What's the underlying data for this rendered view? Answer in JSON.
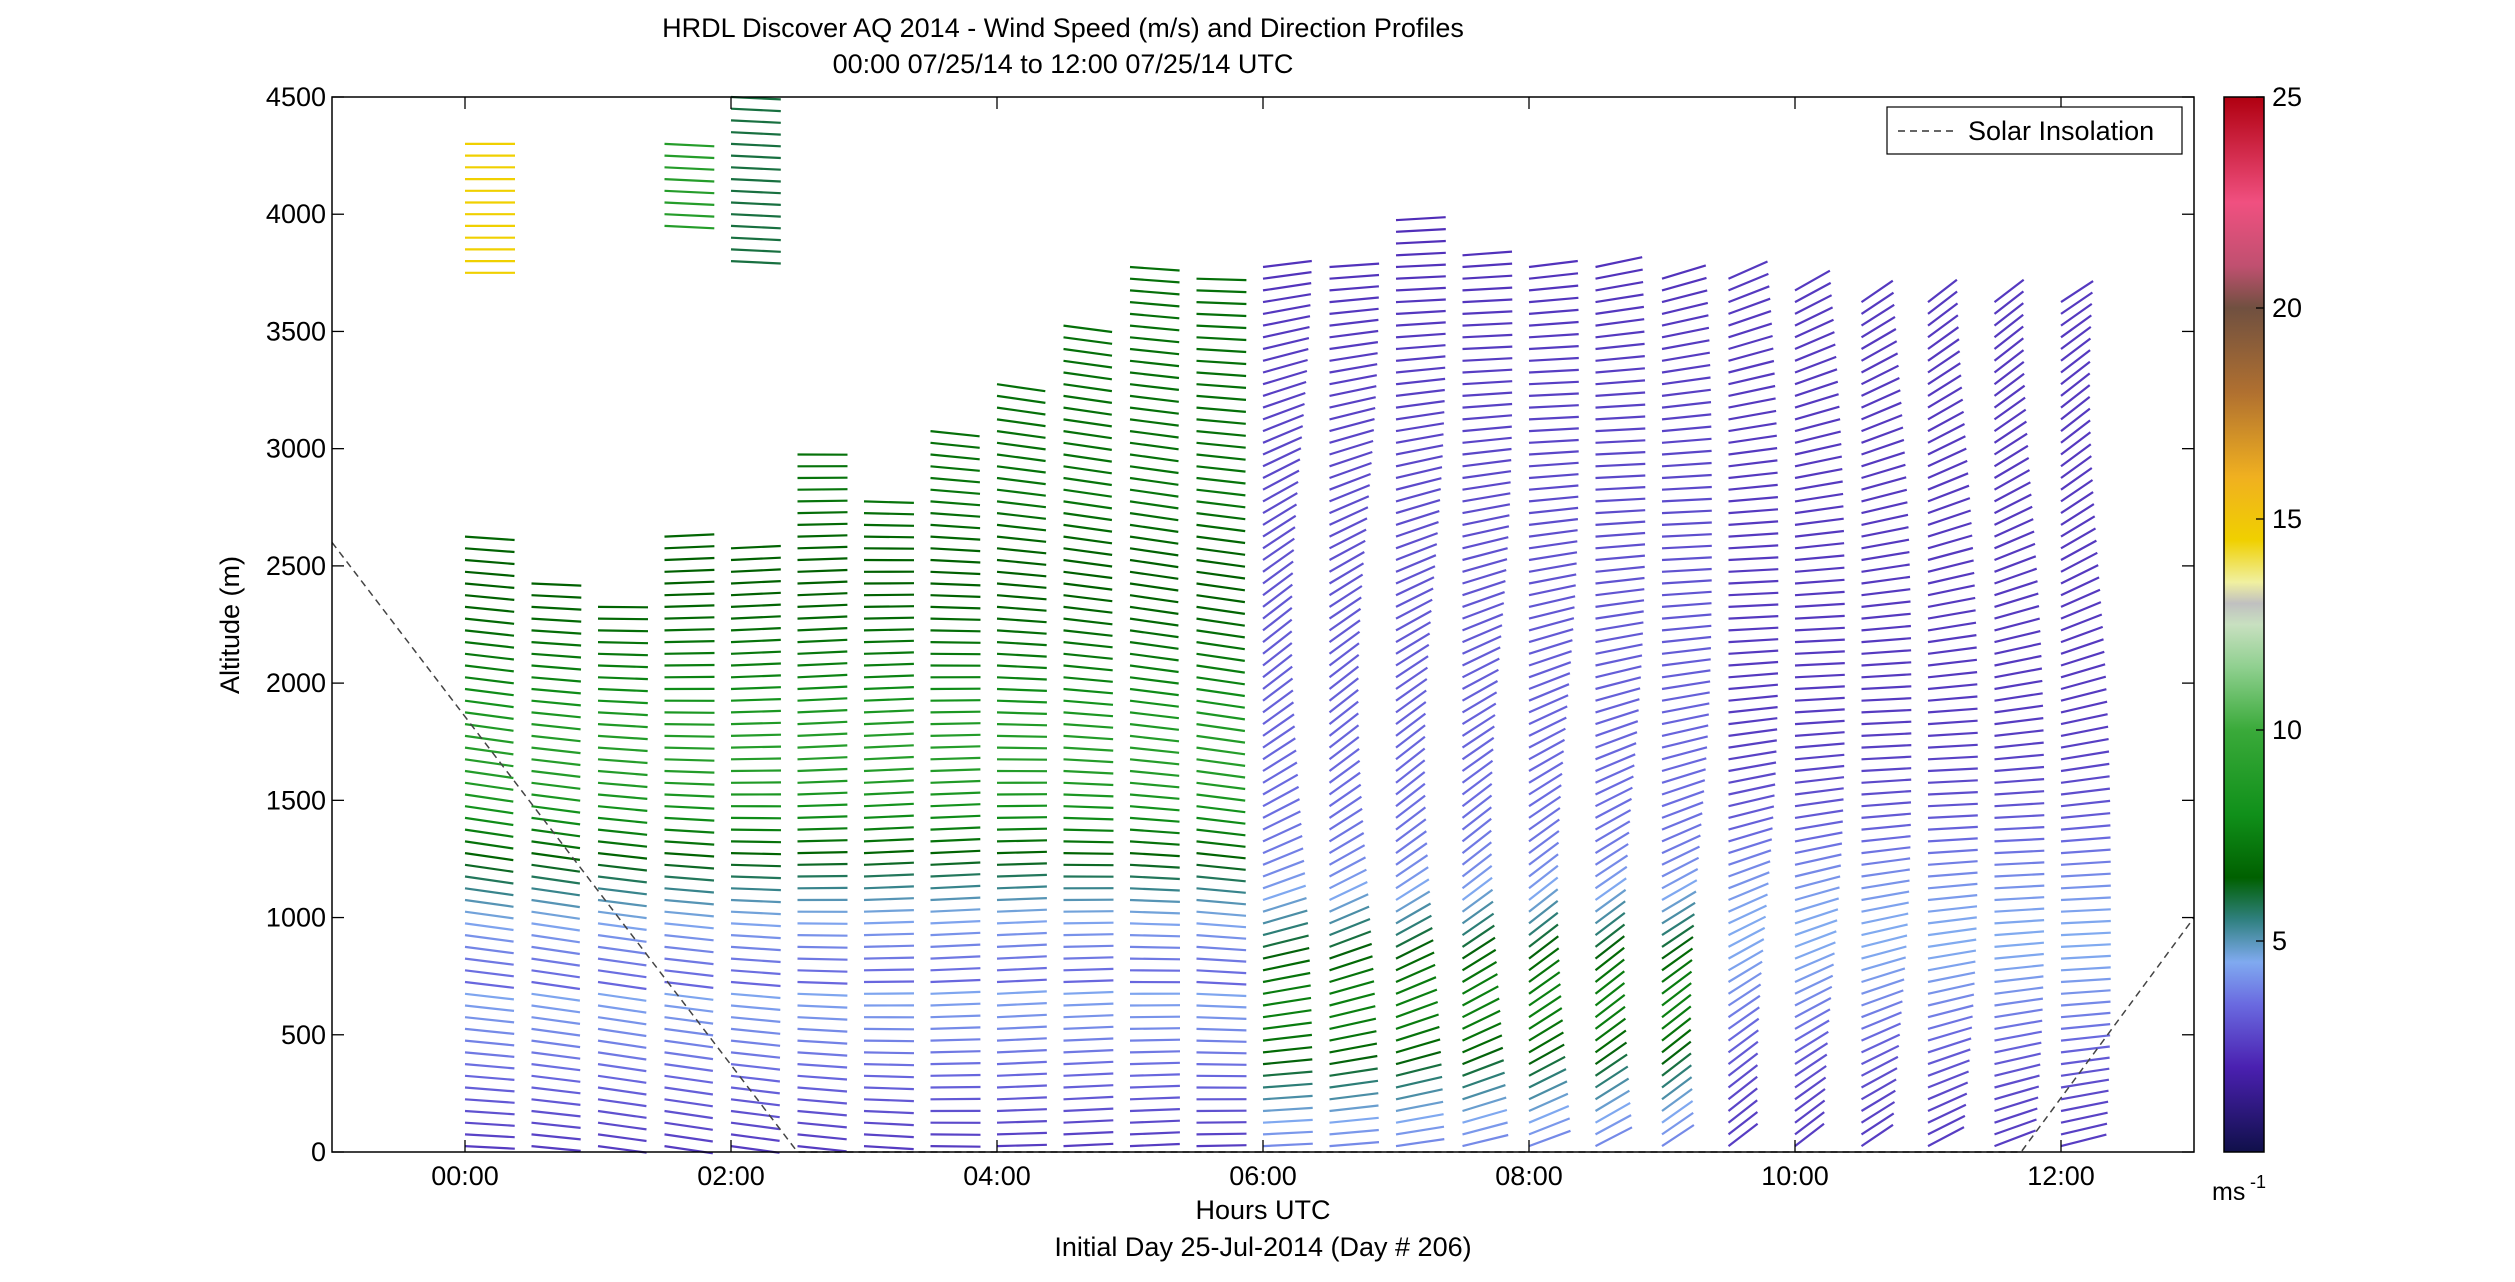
{
  "chart_data": {
    "type": "wind-barb-profile",
    "title": "HRDL Discover AQ 2014 - Wind Speed (m/s) and Direction Profiles",
    "subtitle": "00:00 07/25/14 to 12:00 07/25/14  UTC",
    "xlabel": "Hours UTC",
    "xlabel2": "Initial Day 25-Jul-2014 (Day # 206)",
    "ylabel": "Altitude (m)",
    "x_range_hours": [
      -1.0,
      13.0
    ],
    "ylim": [
      0,
      4500
    ],
    "x_ticks": [
      {
        "value": 0,
        "label": "00:00"
      },
      {
        "value": 2,
        "label": "02:00"
      },
      {
        "value": 4,
        "label": "04:00"
      },
      {
        "value": 6,
        "label": "06:00"
      },
      {
        "value": 8,
        "label": "08:00"
      },
      {
        "value": 10,
        "label": "10:00"
      },
      {
        "value": 12,
        "label": "12:00"
      }
    ],
    "y_ticks": [
      {
        "value": 0,
        "label": "0"
      },
      {
        "value": 500,
        "label": "500"
      },
      {
        "value": 1000,
        "label": "1000"
      },
      {
        "value": 1500,
        "label": "1500"
      },
      {
        "value": 2000,
        "label": "2000"
      },
      {
        "value": 2500,
        "label": "2500"
      },
      {
        "value": 3000,
        "label": "3000"
      },
      {
        "value": 3500,
        "label": "3500"
      },
      {
        "value": 4000,
        "label": "4000"
      },
      {
        "value": 4500,
        "label": "4500"
      }
    ],
    "legend": {
      "label": "Solar Insolation",
      "position": "top-right"
    },
    "colorbar": {
      "min": 0,
      "max": 25,
      "ticks": [
        {
          "value": 5,
          "label": "5"
        },
        {
          "value": 10,
          "label": "10"
        },
        {
          "value": 15,
          "label": "15"
        },
        {
          "value": 20,
          "label": "20"
        },
        {
          "value": 25,
          "label": "25"
        }
      ],
      "unit": "ms",
      "unit_exp": "-1",
      "stops": [
        {
          "value": 0,
          "color": "#10104a"
        },
        {
          "value": 2,
          "color": "#4a20b0"
        },
        {
          "value": 3.5,
          "color": "#6a6ae0"
        },
        {
          "value": 4.5,
          "color": "#80aaf0"
        },
        {
          "value": 5.5,
          "color": "#308080"
        },
        {
          "value": 6.5,
          "color": "#006000"
        },
        {
          "value": 8,
          "color": "#10901a"
        },
        {
          "value": 10,
          "color": "#3aaa3a"
        },
        {
          "value": 11.5,
          "color": "#90d090"
        },
        {
          "value": 12.5,
          "color": "#c8e0c0"
        },
        {
          "value": 13,
          "color": "#c0c0c0"
        },
        {
          "value": 13.5,
          "color": "#f0f0a0"
        },
        {
          "value": 14.5,
          "color": "#f0d000"
        },
        {
          "value": 16,
          "color": "#f0b020"
        },
        {
          "value": 18,
          "color": "#b07030"
        },
        {
          "value": 20,
          "color": "#705040"
        },
        {
          "value": 21,
          "color": "#c05070"
        },
        {
          "value": 22.5,
          "color": "#f05080"
        },
        {
          "value": 25,
          "color": "#b00010"
        }
      ]
    },
    "profiles_hours": [
      0.0,
      0.5,
      1.0,
      1.5,
      2.0,
      2.5,
      3.0,
      3.5,
      4.0,
      4.5,
      5.0,
      5.5,
      6.0,
      6.5,
      7.0,
      7.5,
      8.0,
      8.5,
      9.0,
      9.5,
      10.0,
      10.5,
      11.0,
      11.5,
      12.0
    ],
    "profile_top_m": [
      2650,
      2450,
      2350,
      2650,
      2600,
      3000,
      2800,
      3100,
      3300,
      3550,
      3800,
      3750,
      3800,
      3800,
      4000,
      3850,
      3800,
      3800,
      3750,
      3750,
      3700,
      3650,
      3650,
      3650,
      3650
    ],
    "profile_bottom_m": [
      0,
      0,
      0,
      0,
      0,
      0,
      0,
      0,
      0,
      0,
      0,
      0,
      0,
      0,
      0,
      0,
      0,
      0,
      0,
      0,
      0,
      0,
      0,
      0,
      0
    ],
    "upper_fragments": [
      {
        "hour": 0.0,
        "bottom_m": 3750,
        "top_m": 4300,
        "speed": 14.5,
        "dir_deg": 270
      },
      {
        "hour": 1.5,
        "bottom_m": 3950,
        "top_m": 4300,
        "speed": 9,
        "dir_deg": 265
      },
      {
        "hour": 2.0,
        "bottom_m": 3800,
        "top_m": 4500,
        "speed": 6,
        "dir_deg": 265
      }
    ],
    "solar_insolation": [
      {
        "x": -1.0,
        "y": 2600
      },
      {
        "x": 2.5,
        "y": 0
      },
      {
        "x": 11.7,
        "y": 0
      },
      {
        "x": 13.0,
        "y": 1000
      }
    ]
  }
}
